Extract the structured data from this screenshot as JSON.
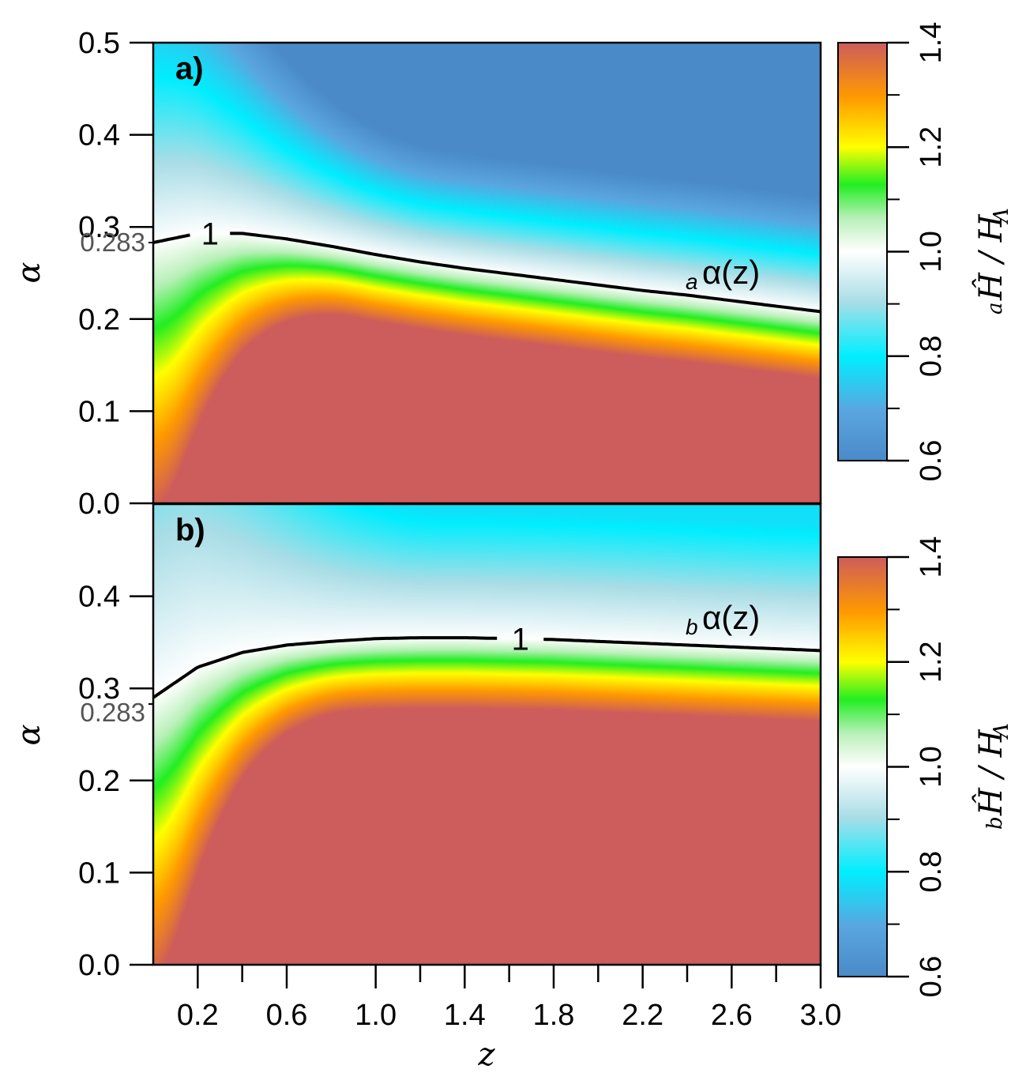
{
  "chart_data": [
    {
      "type": "heatmap",
      "panel_label": "a)",
      "xlabel": "z",
      "ylabel": "α",
      "xlim": [
        0.0,
        3.0
      ],
      "ylim": [
        0.0,
        0.5
      ],
      "x_ticks": [
        0.2,
        0.6,
        1.0,
        1.4,
        1.8,
        2.2,
        2.6,
        3.0
      ],
      "x_tick_labels": [
        "0.2",
        "0.6",
        "1.0",
        "1.4",
        "1.8",
        "2.2",
        "2.6",
        "3.0"
      ],
      "y_ticks": [
        0.0,
        0.1,
        0.2,
        0.3,
        0.4,
        0.5
      ],
      "y_tick_labels": [
        "0.0",
        "0.1",
        "0.2",
        "0.3",
        "0.4",
        "0.5"
      ],
      "y_marker_value": 0.283,
      "y_marker_label": "0.283",
      "contour_level": 1,
      "contour_label": "1",
      "curve_label_sub": "a",
      "curve_label_main": "α(z)",
      "contour_curve": {
        "z": [
          0.0,
          0.2,
          0.4,
          0.6,
          0.8,
          1.0,
          1.2,
          1.4,
          1.6,
          1.8,
          2.0,
          2.2,
          2.4,
          2.6,
          2.8,
          3.0
        ],
        "alpha": [
          0.283,
          0.293,
          0.293,
          0.287,
          0.279,
          0.27,
          0.262,
          0.255,
          0.249,
          0.243,
          0.237,
          0.231,
          0.226,
          0.22,
          0.214,
          0.208
        ]
      },
      "colorbar": {
        "range": [
          0.6,
          1.4
        ],
        "ticks": [
          0.6,
          0.8,
          1.0,
          1.2,
          1.4
        ],
        "tick_labels": [
          "0.6",
          "0.8",
          "1.0",
          "1.2",
          "1.4"
        ],
        "title_sub": "a",
        "title": "Ĥ / H",
        "title_subscript": "Λ"
      }
    },
    {
      "type": "heatmap",
      "panel_label": "b)",
      "xlabel": "z",
      "ylabel": "α",
      "xlim": [
        0.0,
        3.0
      ],
      "ylim": [
        0.0,
        0.5
      ],
      "x_ticks": [
        0.2,
        0.6,
        1.0,
        1.4,
        1.8,
        2.2,
        2.6,
        3.0
      ],
      "x_tick_labels": [
        "0.2",
        "0.6",
        "1.0",
        "1.4",
        "1.8",
        "2.2",
        "2.6",
        "3.0"
      ],
      "y_ticks": [
        0.0,
        0.1,
        0.2,
        0.3,
        0.4
      ],
      "y_tick_labels": [
        "0.0",
        "0.1",
        "0.2",
        "0.3",
        "0.4"
      ],
      "y_marker_value": 0.283,
      "y_marker_label": "0.283",
      "contour_level": 1,
      "contour_label": "1",
      "curve_label_sub": "b",
      "curve_label_main": "α(z)",
      "contour_curve": {
        "z": [
          0.0,
          0.2,
          0.4,
          0.6,
          0.8,
          1.0,
          1.2,
          1.4,
          1.6,
          1.8,
          2.0,
          2.2,
          2.4,
          2.6,
          2.8,
          3.0
        ],
        "alpha": [
          0.29,
          0.323,
          0.339,
          0.347,
          0.351,
          0.354,
          0.355,
          0.355,
          0.354,
          0.353,
          0.351,
          0.349,
          0.347,
          0.345,
          0.343,
          0.341
        ]
      },
      "colorbar": {
        "range": [
          0.6,
          1.4
        ],
        "ticks": [
          0.6,
          0.8,
          1.0,
          1.2,
          1.4
        ],
        "tick_labels": [
          "0.6",
          "0.8",
          "1.0",
          "1.2",
          "1.4"
        ],
        "title_sub": "b",
        "title": "Ĥ / H",
        "title_subscript": "Λ"
      }
    }
  ]
}
